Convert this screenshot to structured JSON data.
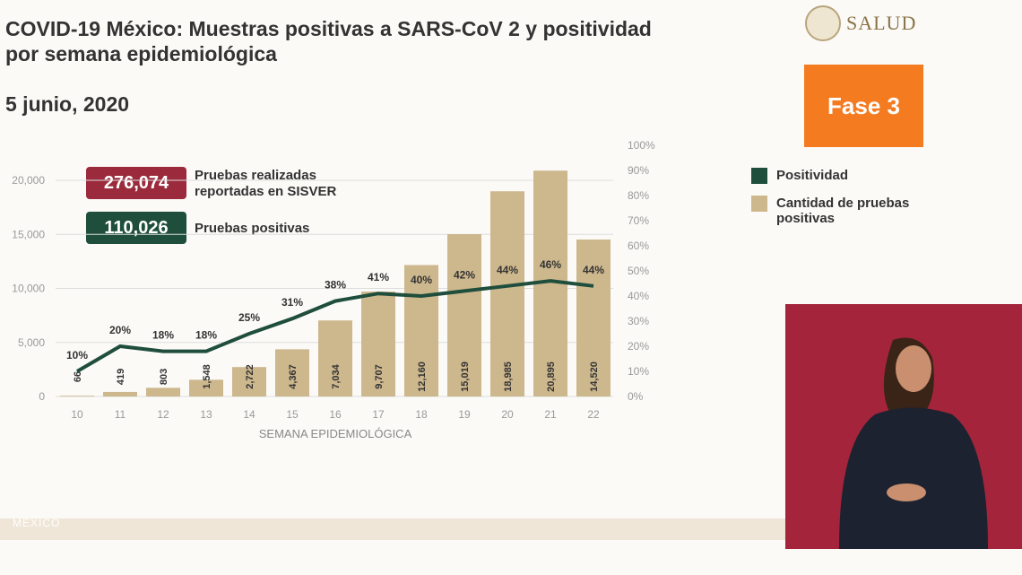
{
  "header": {
    "title": "COVID-19 México: Muestras positivas a SARS-CoV 2 y positividad por semana epidemiológica",
    "date": "5 junio, 2020",
    "logo_text": "SALUD",
    "fase": "Fase 3"
  },
  "stats": [
    {
      "value": "276,074",
      "label": "Pruebas realizadas reportadas en SISVER",
      "color": "#9b2a3c"
    },
    {
      "value": "110,026",
      "label": "Pruebas positivas",
      "color": "#1f4e3d"
    }
  ],
  "footer": {
    "logo_text": "MÉXICO"
  },
  "chart_data": {
    "type": "bar+line",
    "xlabel": "SEMANA EPIDEMIOLÓGICA",
    "categories": [
      "10",
      "11",
      "12",
      "13",
      "14",
      "15",
      "16",
      "17",
      "18",
      "19",
      "20",
      "21",
      "22"
    ],
    "series": [
      {
        "name": "Cantidad de pruebas positivas",
        "type": "bar",
        "axis": "left",
        "color": "#cdb78d",
        "values": [
          66,
          419,
          803,
          1548,
          2722,
          4367,
          7034,
          9707,
          12160,
          15019,
          18985,
          20895,
          14520
        ],
        "labels": [
          "66",
          "419",
          "803",
          "1,548",
          "2,722",
          "4,367",
          "7,034",
          "9,707",
          "12,160",
          "15,019",
          "18,985",
          "20,895",
          "14,520"
        ]
      },
      {
        "name": "Positividad",
        "type": "line",
        "axis": "right",
        "color": "#1f4e3d",
        "values": [
          10,
          20,
          18,
          18,
          25,
          31,
          38,
          41,
          40,
          42,
          44,
          46,
          44
        ]
      }
    ],
    "left_ticks": [
      "0",
      "5,000",
      "10,000",
      "15,000",
      "20,000"
    ],
    "left_tick_values": [
      0,
      5000,
      10000,
      15000,
      20000
    ],
    "right_ticks": [
      "0%",
      "10%",
      "20%",
      "30%",
      "40%",
      "50%",
      "60%",
      "70%",
      "80%",
      "90%",
      "100%"
    ],
    "right_lim": [
      0,
      100
    ],
    "grid": true,
    "legend": "right"
  }
}
